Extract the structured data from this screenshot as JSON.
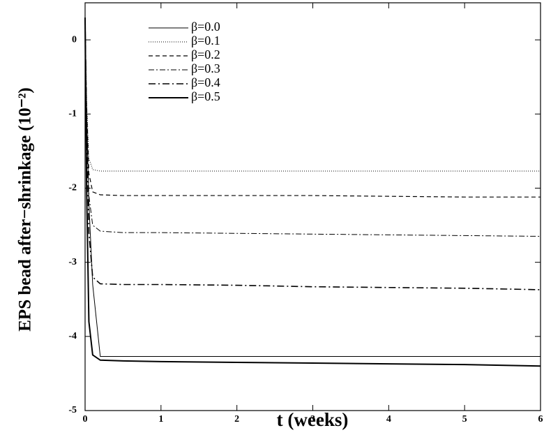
{
  "chart_data": {
    "type": "line",
    "xlabel": "t (weeks)",
    "ylabel": "EPS bead after−shrinkage (10⁻²)",
    "x": [
      0,
      0.02,
      0.05,
      0.1,
      0.2,
      0.5,
      1,
      2,
      3,
      4,
      5,
      6
    ],
    "series": [
      {
        "name": "β=0.0",
        "color": "#000000",
        "dash": "none",
        "width": 1,
        "values": [
          0.3,
          -1.0,
          -2.2,
          -3.3,
          -4.27,
          -4.27,
          -4.27,
          -4.27,
          -4.27,
          -4.27,
          -4.27,
          -4.27
        ]
      },
      {
        "name": "β=0.1",
        "color": "#000000",
        "dash": "1,2",
        "width": 1,
        "values": [
          0.3,
          -0.8,
          -1.6,
          -1.75,
          -1.77,
          -1.77,
          -1.77,
          -1.77,
          -1.77,
          -1.77,
          -1.77,
          -1.77
        ]
      },
      {
        "name": "β=0.2",
        "color": "#000000",
        "dash": "6,4",
        "width": 1.2,
        "values": [
          0.3,
          -0.9,
          -1.8,
          -2.05,
          -2.09,
          -2.1,
          -2.1,
          -2.1,
          -2.1,
          -2.11,
          -2.12,
          -2.12
        ]
      },
      {
        "name": "β=0.3",
        "color": "#000000",
        "dash": "8,3,2,3",
        "width": 1,
        "values": [
          0.3,
          -1.0,
          -2.1,
          -2.5,
          -2.58,
          -2.6,
          -2.6,
          -2.61,
          -2.62,
          -2.63,
          -2.64,
          -2.65
        ]
      },
      {
        "name": "β=0.4",
        "color": "#000000",
        "dash": "10,4,2,4",
        "width": 1.6,
        "values": [
          0.3,
          -1.2,
          -2.6,
          -3.2,
          -3.29,
          -3.3,
          -3.3,
          -3.31,
          -3.33,
          -3.34,
          -3.35,
          -3.37
        ]
      },
      {
        "name": "β=0.5",
        "color": "#000000",
        "dash": "none",
        "width": 2,
        "values": [
          0.3,
          -2.0,
          -3.8,
          -4.25,
          -4.32,
          -4.33,
          -4.34,
          -4.35,
          -4.36,
          -4.37,
          -4.38,
          -4.4
        ]
      }
    ],
    "xlim": [
      0,
      6
    ],
    "xticks": [
      0,
      1,
      2,
      3,
      4,
      5,
      6
    ],
    "ylim": [
      -5,
      0.5
    ],
    "yticks": [
      -5,
      -4,
      -3,
      -2,
      -1,
      0
    ]
  }
}
